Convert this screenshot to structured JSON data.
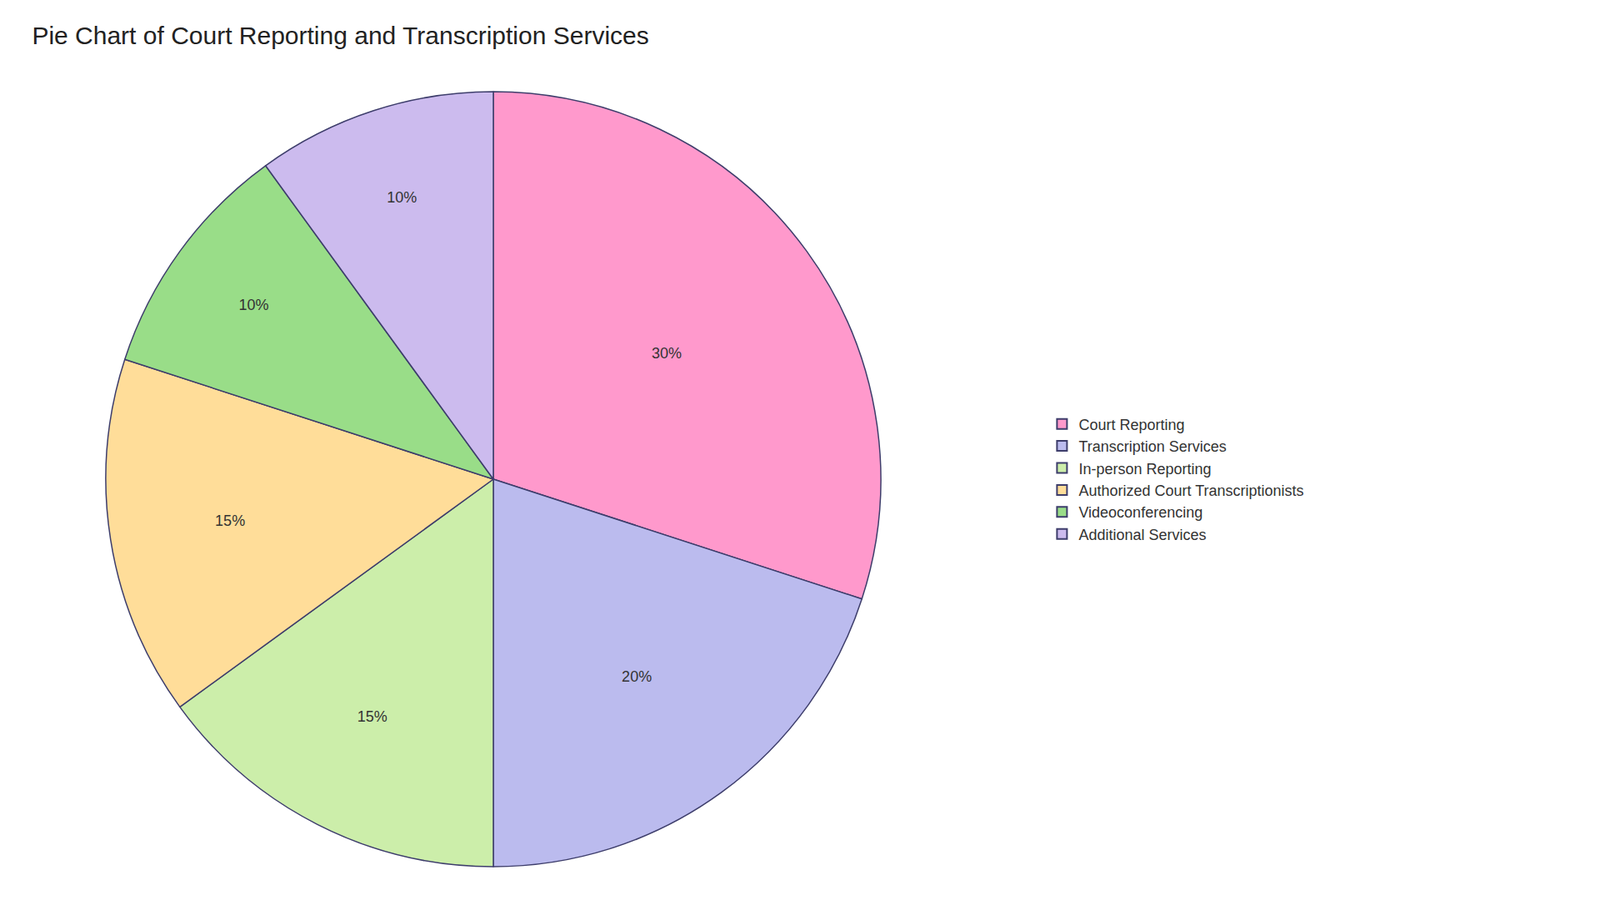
{
  "chart_data": {
    "type": "pie",
    "title": "Pie Chart of Court Reporting and Transcription Services",
    "categories": [
      "Court Reporting",
      "Transcription Services",
      "In-person Reporting",
      "Authorized Court Transcriptionists",
      "Videoconferencing",
      "Additional Services"
    ],
    "values": [
      30,
      20,
      15,
      15,
      10,
      10
    ],
    "value_labels": [
      "30%",
      "20%",
      "15%",
      "15%",
      "10%",
      "10%"
    ],
    "colors": [
      "#FF99CC",
      "#BBBBEE",
      "#CCEEAA",
      "#FFDD99",
      "#99DD88",
      "#CCBBEE"
    ],
    "data_labels": true,
    "legend": "right"
  }
}
